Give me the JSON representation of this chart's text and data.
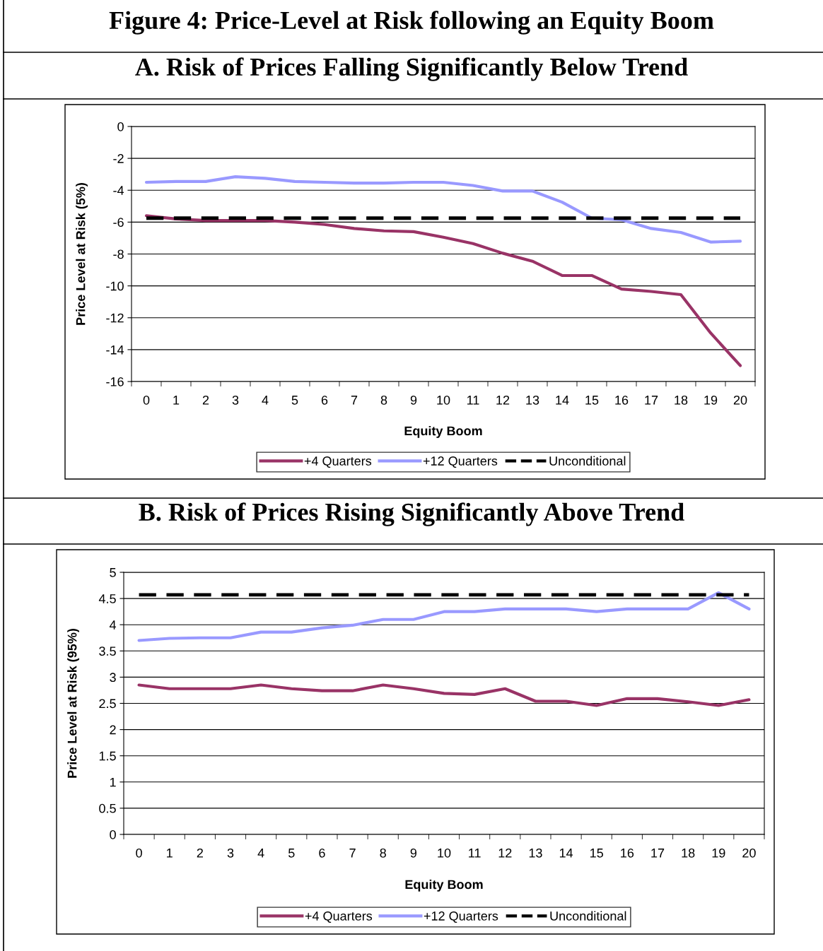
{
  "chart_data": [
    {
      "type": "line",
      "title": "A. Risk of Prices Falling Significantly Below Trend",
      "annotations": [
        "Figure 4: Price-Level at Risk following an Equity Boom"
      ],
      "xlabel": "Equity Boom",
      "ylabel": "Price Level at Risk (5%)",
      "categories": [
        "0",
        "1",
        "2",
        "3",
        "4",
        "5",
        "6",
        "7",
        "8",
        "9",
        "10",
        "11",
        "12",
        "13",
        "14",
        "15",
        "16",
        "17",
        "18",
        "19",
        "20"
      ],
      "series": [
        {
          "name": "+4 Quarters",
          "color": "#993366",
          "values": [
            -5.6,
            -5.8,
            -5.9,
            -5.9,
            -5.9,
            -6.0,
            -6.15,
            -6.4,
            -6.55,
            -6.6,
            -6.95,
            -7.35,
            -7.95,
            -8.45,
            -9.35,
            -9.35,
            -10.2,
            -10.35,
            -10.55,
            -12.95,
            -15.0
          ]
        },
        {
          "name": "+12 Quarters",
          "color": "#9999ff",
          "values": [
            -3.5,
            -3.45,
            -3.45,
            -3.15,
            -3.25,
            -3.45,
            -3.5,
            -3.55,
            -3.55,
            -3.5,
            -3.5,
            -3.7,
            -4.05,
            -4.05,
            -4.75,
            -5.75,
            -5.85,
            -6.4,
            -6.65,
            -7.25,
            -7.2
          ]
        },
        {
          "name": "Unconditional",
          "color": "#000000",
          "line_style": "dashed",
          "values": [
            -5.75,
            -5.75,
            -5.75,
            -5.75,
            -5.75,
            -5.75,
            -5.75,
            -5.75,
            -5.75,
            -5.75,
            -5.75,
            -5.75,
            -5.75,
            -5.75,
            -5.75,
            -5.75,
            -5.75,
            -5.75,
            -5.75,
            -5.75,
            -5.75
          ]
        }
      ],
      "ylim": [
        -16,
        0
      ],
      "yticks": [
        -16,
        -14,
        -12,
        -10,
        -8,
        -6,
        -4,
        -2,
        0
      ],
      "grid": "y",
      "legend": "bottom",
      "marker": "none"
    },
    {
      "type": "line",
      "title": "B. Risk of Prices Rising Significantly Above Trend",
      "xlabel": "Equity Boom",
      "ylabel": "Price Level at Risk (95%)",
      "categories": [
        "0",
        "1",
        "2",
        "3",
        "4",
        "5",
        "6",
        "7",
        "8",
        "9",
        "10",
        "11",
        "12",
        "13",
        "14",
        "15",
        "16",
        "17",
        "18",
        "19",
        "20"
      ],
      "series": [
        {
          "name": "+4 Quarters",
          "color": "#993366",
          "values": [
            2.85,
            2.78,
            2.78,
            2.78,
            2.85,
            2.78,
            2.74,
            2.74,
            2.85,
            2.78,
            2.69,
            2.67,
            2.78,
            2.54,
            2.54,
            2.46,
            2.59,
            2.59,
            2.53,
            2.46,
            2.57
          ]
        },
        {
          "name": "+12 Quarters",
          "color": "#9999ff",
          "values": [
            3.7,
            3.74,
            3.75,
            3.75,
            3.86,
            3.86,
            3.94,
            3.99,
            4.1,
            4.1,
            4.25,
            4.25,
            4.3,
            4.3,
            4.3,
            4.25,
            4.3,
            4.3,
            4.3,
            4.61,
            4.3
          ]
        },
        {
          "name": "Unconditional",
          "color": "#000000",
          "line_style": "dashed",
          "values": [
            4.57,
            4.57,
            4.57,
            4.57,
            4.57,
            4.57,
            4.57,
            4.57,
            4.57,
            4.57,
            4.57,
            4.57,
            4.57,
            4.57,
            4.57,
            4.57,
            4.57,
            4.57,
            4.57,
            4.57,
            4.57
          ]
        }
      ],
      "ylim": [
        0,
        5
      ],
      "yticks": [
        0,
        0.5,
        1,
        1.5,
        2,
        2.5,
        3,
        3.5,
        4,
        4.5,
        5
      ],
      "grid": "y",
      "legend": "bottom",
      "marker": "none"
    }
  ]
}
